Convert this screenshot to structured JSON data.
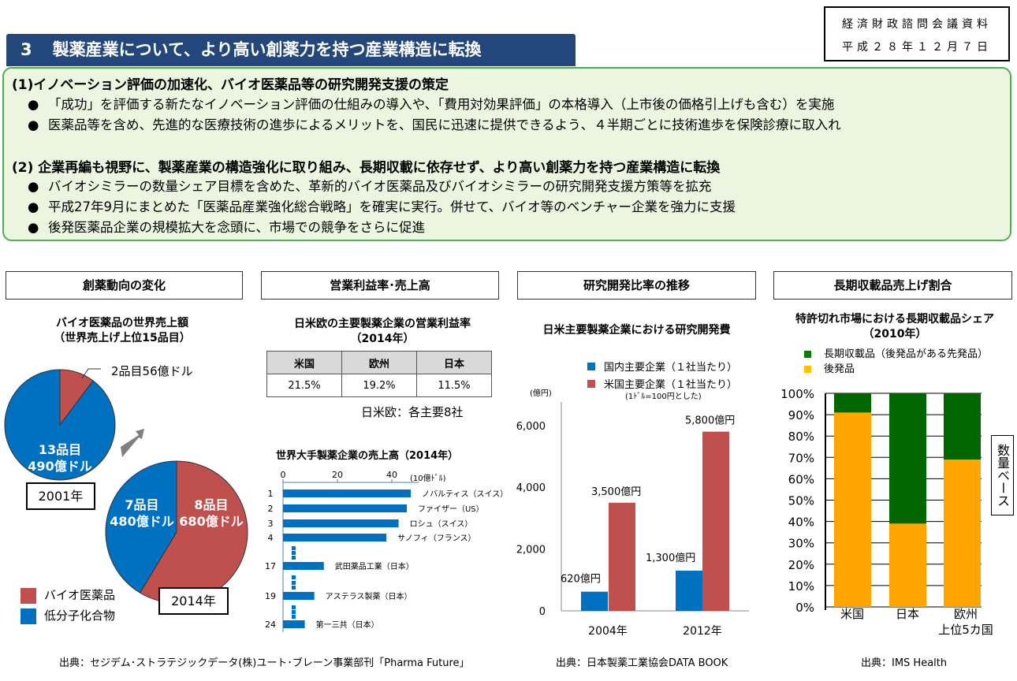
{
  "header": {
    "section_number": "3",
    "title": "製薬産業について、より高い創薬力を持つ産業構造に転換",
    "doc_label": "経済財政諮問会議資料",
    "doc_date": "平成２８年１２月７日"
  },
  "summary": {
    "items": [
      {
        "heading": "(1)イノベーション評価の加速化、バイオ医薬品等の研究開発支援の策定",
        "bullets": [
          "「成功」を評価する新たなイノベーション評価の仕組みの導入や、「費用対効果評価」の本格導入（上市後の価格引上げも含む）を実施",
          "医薬品等を含め、先進的な医療技術の進歩によるメリットを、国民に迅速に提供できるよう、４半期ごとに技術進歩を保険診療に取入れ"
        ]
      },
      {
        "heading": "(2) 企業再編も視野に、製薬産業の構造強化に取り組み、長期収載に依存せず、より高い創薬力を持つ産業構造に転換",
        "bullets": [
          "バイオシミラーの数量シェア目標を含めた、革新的バイオ医薬品及びバイオシミラーの研究開発支援方策等を拡充",
          "平成27年9月にまとめた「医薬品産業強化総合戦略」を確実に実行。併せて、バイオ等のベンチャー企業を強力に支援",
          "後発医薬品企業の規模拡大を念頭に、市場での競争をさらに促進"
        ]
      }
    ],
    "bullet_symbol": "●"
  },
  "panels": {
    "p1": {
      "header": "創薬動向の変化",
      "source": "出典：セジデム･ストラテジックデータ(株)ユート･ブレーン事業部刊「Pharma Future」"
    },
    "p2": {
      "header": "営業利益率･売上高",
      "source": ""
    },
    "p3": {
      "header": "研究開発比率の推移",
      "source": "出典：日本製薬工業協会DATA BOOK"
    },
    "p4": {
      "header": "長期収載品売上げ割合",
      "source": "出典：IMS Health"
    }
  },
  "colors": {
    "bio": "#c0504d",
    "small": "#0070c0",
    "long": "#006600",
    "generic": "#ffa500",
    "title_bg": "#23477a"
  },
  "chart_data": [
    {
      "type": "pie",
      "title": "バイオ医薬品の世界売上額\n（世界売上げ上位15品目）",
      "title_lines": [
        "バイオ医薬品の世界売上額",
        "（世界売上げ上位15品目）"
      ],
      "legend": [
        "バイオ医薬品",
        "低分子化合物"
      ],
      "pies": [
        {
          "year": "2001年",
          "slices": [
            {
              "name": "バイオ医薬品",
              "value": 56,
              "label": "2品目56億ドル"
            },
            {
              "name": "低分子化合物",
              "value": 490,
              "label_lines": [
                "13品目",
                "490億ドル"
              ]
            }
          ]
        },
        {
          "year": "2014年",
          "slices": [
            {
              "name": "バイオ医薬品",
              "value": 680,
              "label_lines": [
                "8品目",
                "680億ドル"
              ]
            },
            {
              "name": "低分子化合物",
              "value": 480,
              "label_lines": [
                "7品目",
                "480億ドル"
              ]
            }
          ]
        }
      ]
    },
    {
      "type": "table",
      "title_lines": [
        "日米欧の主要製薬企業の営業利益率",
        "（2014年）"
      ],
      "columns": [
        "米国",
        "欧州",
        "日本"
      ],
      "values": [
        "21.5%",
        "19.2%",
        "11.5%"
      ],
      "note": "日米欧：各主要8社"
    },
    {
      "type": "bar",
      "orientation": "horizontal",
      "title": "世界大手製薬企業の売上高（2014年）",
      "unit": "(10億ﾄﾞﾙ)",
      "xticks": [
        0,
        20,
        40
      ],
      "xlim": [
        0,
        50
      ],
      "bars": [
        {
          "rank": "1",
          "name": "ノバルティス（スイス）",
          "value": 47
        },
        {
          "rank": "2",
          "name": "ファイザー（US）",
          "value": 45.5
        },
        {
          "rank": "3",
          "name": "ロシュ（スイス）",
          "value": 42.5
        },
        {
          "rank": "4",
          "name": "サノフィ（フランス）",
          "value": 38
        },
        {
          "rank": "17",
          "name": "武田薬品工業（日本）",
          "value": 15
        },
        {
          "rank": "19",
          "name": "アステラス製薬（日本）",
          "value": 11.5
        },
        {
          "rank": "24",
          "name": "第一三共（日本）",
          "value": 8
        }
      ]
    },
    {
      "type": "bar",
      "title": "日米主要製薬企業における研究開発費",
      "ylabel": "(億円)",
      "yticks": [
        "0",
        "2,000",
        "4,000",
        "6,000"
      ],
      "ytick_values": [
        0,
        2000,
        4000,
        6000
      ],
      "ylim": [
        0,
        7000
      ],
      "categories": [
        "2004年",
        "2012年"
      ],
      "series": [
        {
          "name": "国内主要企業（１社当たり）",
          "values": [
            620,
            1300
          ],
          "labels": [
            "620億円",
            "1,300億円"
          ]
        },
        {
          "name": "米国主要企業（１社当たり）",
          "values": [
            3500,
            5800
          ],
          "labels": [
            "3,500億円",
            "5,800億円"
          ]
        }
      ],
      "note": "(1ﾄﾞﾙ=100円とした)"
    },
    {
      "type": "bar",
      "stacked": true,
      "title_lines": [
        "特許切れ市場における長期収載品シェア",
        "（2010年）"
      ],
      "categories": [
        "米国",
        "日本",
        "欧州\n上位5カ国"
      ],
      "category_lines": [
        [
          "米国"
        ],
        [
          "日本"
        ],
        [
          "欧州",
          "上位5カ国"
        ]
      ],
      "series": [
        {
          "name": "後発品",
          "values": [
            91,
            39,
            69
          ]
        },
        {
          "name": "長期収載品（後発品がある先発品）",
          "values": [
            9,
            61,
            31
          ]
        }
      ],
      "legend": [
        "長期収載品（後発品がある先発品）",
        "後発品"
      ],
      "yticks": [
        "0%",
        "10%",
        "20%",
        "30%",
        "40%",
        "50%",
        "60%",
        "70%",
        "80%",
        "90%",
        "100%"
      ],
      "ylim": [
        0,
        100
      ],
      "side_label": "数量ベース"
    }
  ]
}
